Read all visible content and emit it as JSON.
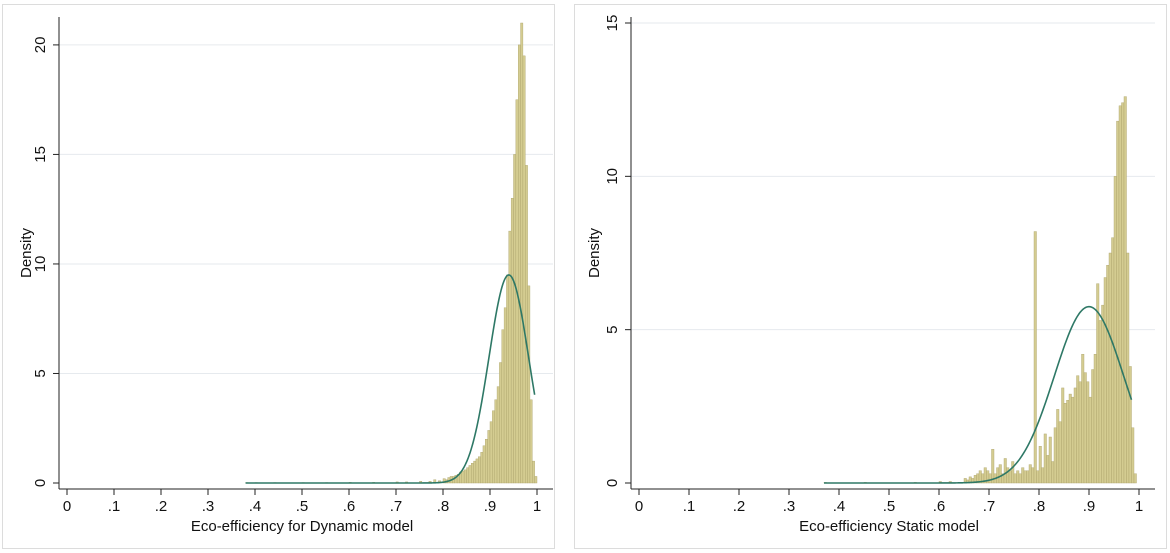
{
  "chart_data": [
    {
      "type": "histogram",
      "xlabel": "Eco-efficiency for Dynamic model",
      "ylabel": "Density",
      "xlim": [
        0,
        1
      ],
      "ylim": [
        0,
        21
      ],
      "x_ticks": [
        0,
        0.1,
        0.2,
        0.3,
        0.4,
        0.5,
        0.6,
        0.7,
        0.8,
        0.9,
        1
      ],
      "x_tick_labels": [
        "0",
        ".1",
        ".2",
        ".3",
        ".4",
        ".5",
        ".6",
        ".7",
        ".8",
        ".9",
        "1"
      ],
      "y_ticks": [
        0,
        5,
        10,
        15,
        20
      ],
      "y_tick_labels": [
        "0",
        "5",
        "10",
        "15",
        "20"
      ],
      "grid": "horizontal",
      "bar_color": "#d4cc91",
      "bar_edge_color": "#aca36b",
      "curve_color": "#2e7866",
      "bin_width": 0.005,
      "bins": [
        [
          0.38,
          0.02
        ],
        [
          0.4,
          0.02
        ],
        [
          0.44,
          0.02
        ],
        [
          0.5,
          0.02
        ],
        [
          0.55,
          0.02
        ],
        [
          0.6,
          0.03
        ],
        [
          0.65,
          0.03
        ],
        [
          0.7,
          0.05
        ],
        [
          0.72,
          0.05
        ],
        [
          0.75,
          0.08
        ],
        [
          0.77,
          0.08
        ],
        [
          0.78,
          0.15
        ],
        [
          0.79,
          0.1
        ],
        [
          0.8,
          0.2
        ],
        [
          0.805,
          0.15
        ],
        [
          0.81,
          0.25
        ],
        [
          0.815,
          0.3
        ],
        [
          0.82,
          0.3
        ],
        [
          0.825,
          0.35
        ],
        [
          0.83,
          0.4
        ],
        [
          0.835,
          0.5
        ],
        [
          0.84,
          0.55
        ],
        [
          0.845,
          0.6
        ],
        [
          0.85,
          0.7
        ],
        [
          0.855,
          0.8
        ],
        [
          0.86,
          0.9
        ],
        [
          0.865,
          1.0
        ],
        [
          0.87,
          1.1
        ],
        [
          0.875,
          1.2
        ],
        [
          0.88,
          1.4
        ],
        [
          0.885,
          1.7
        ],
        [
          0.89,
          2.0
        ],
        [
          0.895,
          2.4
        ],
        [
          0.9,
          2.8
        ],
        [
          0.905,
          3.3
        ],
        [
          0.91,
          3.8
        ],
        [
          0.915,
          4.4
        ],
        [
          0.92,
          5.5
        ],
        [
          0.925,
          7.0
        ],
        [
          0.93,
          8.0
        ],
        [
          0.935,
          9.5
        ],
        [
          0.94,
          11.5
        ],
        [
          0.945,
          13.0
        ],
        [
          0.95,
          15.0
        ],
        [
          0.955,
          17.5
        ],
        [
          0.96,
          20.0
        ],
        [
          0.965,
          21.0
        ],
        [
          0.97,
          19.5
        ],
        [
          0.975,
          14.5
        ],
        [
          0.98,
          9.0
        ],
        [
          0.985,
          3.8
        ],
        [
          0.99,
          1.0
        ],
        [
          0.995,
          0.3
        ]
      ],
      "density_curve": {
        "type": "normal",
        "mean": 0.94,
        "peak": 9.5,
        "x_range": [
          0.38,
          0.995
        ]
      }
    },
    {
      "type": "histogram",
      "xlabel": "Eco-efficiency Static model",
      "ylabel": "Density",
      "xlim": [
        0,
        1
      ],
      "ylim": [
        0,
        15
      ],
      "x_ticks": [
        0,
        0.1,
        0.2,
        0.3,
        0.4,
        0.5,
        0.6,
        0.7,
        0.8,
        0.9,
        1
      ],
      "x_tick_labels": [
        "0",
        ".1",
        ".2",
        ".3",
        ".4",
        ".5",
        ".6",
        ".7",
        ".8",
        ".9",
        "1"
      ],
      "y_ticks": [
        0,
        5,
        10,
        15
      ],
      "y_tick_labels": [
        "0",
        "5",
        "10",
        "15"
      ],
      "grid": "horizontal",
      "bar_color": "#d4cc91",
      "bar_edge_color": "#aca36b",
      "curve_color": "#2e7866",
      "bin_width": 0.005,
      "bins": [
        [
          0.37,
          0.02
        ],
        [
          0.45,
          0.02
        ],
        [
          0.55,
          0.02
        ],
        [
          0.6,
          0.05
        ],
        [
          0.62,
          0.05
        ],
        [
          0.65,
          0.15
        ],
        [
          0.655,
          0.1
        ],
        [
          0.66,
          0.2
        ],
        [
          0.665,
          0.15
        ],
        [
          0.67,
          0.25
        ],
        [
          0.675,
          0.3
        ],
        [
          0.68,
          0.4
        ],
        [
          0.685,
          0.3
        ],
        [
          0.69,
          0.5
        ],
        [
          0.695,
          0.4
        ],
        [
          0.7,
          0.3
        ],
        [
          0.705,
          1.1
        ],
        [
          0.71,
          0.3
        ],
        [
          0.715,
          0.5
        ],
        [
          0.72,
          0.6
        ],
        [
          0.725,
          0.3
        ],
        [
          0.73,
          0.8
        ],
        [
          0.735,
          0.5
        ],
        [
          0.74,
          0.4
        ],
        [
          0.745,
          0.7
        ],
        [
          0.75,
          0.3
        ],
        [
          0.755,
          0.4
        ],
        [
          0.76,
          0.3
        ],
        [
          0.765,
          0.5
        ],
        [
          0.77,
          0.4
        ],
        [
          0.775,
          0.4
        ],
        [
          0.78,
          0.6
        ],
        [
          0.785,
          0.5
        ],
        [
          0.79,
          8.2
        ],
        [
          0.795,
          0.4
        ],
        [
          0.8,
          1.2
        ],
        [
          0.805,
          0.5
        ],
        [
          0.81,
          1.6
        ],
        [
          0.815,
          0.9
        ],
        [
          0.82,
          1.5
        ],
        [
          0.825,
          0.7
        ],
        [
          0.83,
          1.8
        ],
        [
          0.835,
          2.4
        ],
        [
          0.84,
          2.0
        ],
        [
          0.845,
          3.1
        ],
        [
          0.85,
          2.6
        ],
        [
          0.855,
          2.7
        ],
        [
          0.86,
          2.9
        ],
        [
          0.865,
          2.8
        ],
        [
          0.87,
          3.1
        ],
        [
          0.875,
          3.5
        ],
        [
          0.88,
          3.3
        ],
        [
          0.885,
          4.2
        ],
        [
          0.89,
          3.6
        ],
        [
          0.895,
          3.3
        ],
        [
          0.9,
          2.8
        ],
        [
          0.905,
          3.7
        ],
        [
          0.91,
          4.2
        ],
        [
          0.915,
          6.5
        ],
        [
          0.92,
          5.3
        ],
        [
          0.925,
          5.8
        ],
        [
          0.93,
          6.7
        ],
        [
          0.935,
          7.1
        ],
        [
          0.94,
          7.5
        ],
        [
          0.945,
          8.0
        ],
        [
          0.95,
          10.0
        ],
        [
          0.955,
          11.8
        ],
        [
          0.96,
          12.3
        ],
        [
          0.965,
          12.4
        ],
        [
          0.97,
          12.6
        ],
        [
          0.975,
          7.5
        ],
        [
          0.98,
          3.8
        ],
        [
          0.985,
          1.8
        ],
        [
          0.99,
          0.3
        ]
      ],
      "density_curve": {
        "type": "normal",
        "mean": 0.9,
        "peak": 5.75,
        "x_range": [
          0.37,
          0.985
        ]
      }
    }
  ]
}
